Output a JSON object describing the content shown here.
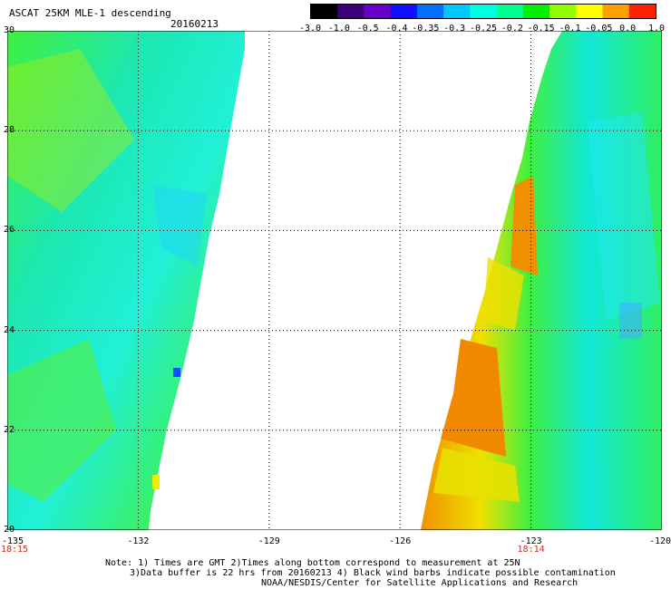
{
  "header": {
    "title": "ASCAT 25KM MLE-1 descending",
    "date": "20160213"
  },
  "colorbar": {
    "ticks": [
      "-3.0",
      "-1.0",
      "-0.5",
      "-0.4",
      "-0.35",
      "-0.3",
      "-0.25",
      "-0.2",
      "-0.15",
      "-0.1",
      "-0.05",
      "0.0",
      "1.0"
    ],
    "colors": [
      "#000000",
      "#3c0078",
      "#6a00c8",
      "#1010ff",
      "#0070ff",
      "#00c8ff",
      "#00ffe0",
      "#00ff90",
      "#00f000",
      "#90ff00",
      "#ffff00",
      "#ffa000",
      "#ff2000"
    ]
  },
  "map": {
    "lon_range": [
      -135,
      -120
    ],
    "lat_range": [
      20,
      30
    ],
    "lon_ticks": [
      "-135",
      "-132",
      "-129",
      "-126",
      "-123",
      "-120"
    ],
    "lat_ticks": [
      "30",
      "28",
      "26",
      "24",
      "22",
      "20"
    ],
    "time_labels": [
      {
        "text": "18:15",
        "lon": -135
      },
      {
        "text": "18:14",
        "lon": -123
      }
    ]
  },
  "notes": [
    "Note: 1) Times are GMT 2)Times along bottom correspond to measurement at 25N",
    "3)Data buffer is 22 hrs from 20160213 4) Black wind barbs indicate possible contamination",
    "NOAA/NESDIS/Center for Satellite Applications and Research"
  ]
}
